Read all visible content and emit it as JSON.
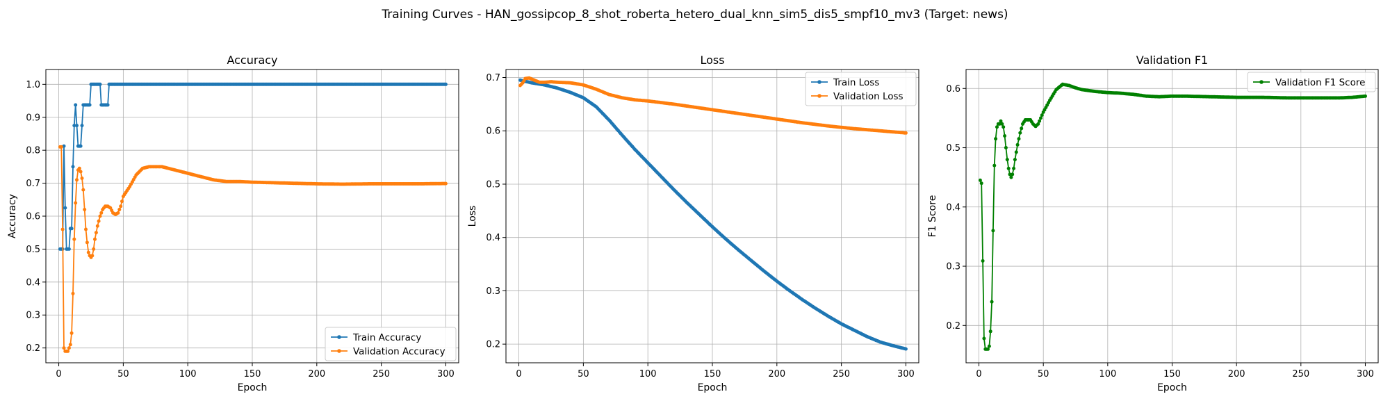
{
  "figure": {
    "title": "Training Curves - HAN_gossipcop_8_shot_roberta_hetero_dual_knn_sim5_dis5_smpf10_mv3 (Target: news)"
  },
  "chart_data": [
    {
      "type": "line",
      "title": "Accuracy",
      "xlabel": "Epoch",
      "ylabel": "Accuracy",
      "xlim": [
        -10,
        310
      ],
      "ylim": [
        0.155,
        1.045
      ],
      "xticks": [
        0,
        50,
        100,
        150,
        200,
        250,
        300
      ],
      "yticks": [
        0.2,
        0.3,
        0.4,
        0.5,
        0.6,
        0.7,
        0.8,
        0.9,
        1.0
      ],
      "ytick_labels": [
        "0.2",
        "0.3",
        "0.4",
        "0.5",
        "0.6",
        "0.7",
        "0.8",
        "0.9",
        "1.0"
      ],
      "grid": true,
      "legend_position": "lower-right",
      "series": [
        {
          "name": "Train Accuracy",
          "color": "#1f77b4",
          "points": [
            [
              1,
              0.5
            ],
            [
              2,
              0.5
            ],
            [
              3,
              0.5
            ],
            [
              4,
              0.8125
            ],
            [
              5,
              0.625
            ],
            [
              6,
              0.5
            ],
            [
              8,
              0.5
            ],
            [
              9,
              0.5625
            ],
            [
              10,
              0.5625
            ],
            [
              11,
              0.75
            ],
            [
              12,
              0.875
            ],
            [
              13,
              0.9375
            ],
            [
              14,
              0.875
            ],
            [
              15,
              0.8125
            ],
            [
              17,
              0.8125
            ],
            [
              18,
              0.875
            ],
            [
              19,
              0.9375
            ],
            [
              24,
              0.9375
            ],
            [
              25,
              1.0
            ],
            [
              32,
              1.0
            ],
            [
              33,
              0.9375
            ],
            [
              38,
              0.9375
            ],
            [
              39,
              1.0
            ],
            [
              300,
              1.0
            ]
          ]
        },
        {
          "name": "Validation Accuracy",
          "color": "#ff7f0e",
          "points": [
            [
              1,
              0.81
            ],
            [
              2,
              0.81
            ],
            [
              3,
              0.56
            ],
            [
              4,
              0.2
            ],
            [
              5,
              0.19
            ],
            [
              7,
              0.19
            ],
            [
              8,
              0.2
            ],
            [
              9,
              0.21
            ],
            [
              10,
              0.245
            ],
            [
              11,
              0.365
            ],
            [
              12,
              0.53
            ],
            [
              13,
              0.64
            ],
            [
              14,
              0.71
            ],
            [
              15,
              0.74
            ],
            [
              16,
              0.745
            ],
            [
              17,
              0.735
            ],
            [
              18,
              0.715
            ],
            [
              19,
              0.68
            ],
            [
              20,
              0.62
            ],
            [
              21,
              0.56
            ],
            [
              22,
              0.52
            ],
            [
              23,
              0.49
            ],
            [
              24,
              0.48
            ],
            [
              25,
              0.475
            ],
            [
              26,
              0.48
            ],
            [
              27,
              0.5
            ],
            [
              28,
              0.53
            ],
            [
              30,
              0.57
            ],
            [
              32,
              0.6
            ],
            [
              34,
              0.62
            ],
            [
              36,
              0.63
            ],
            [
              38,
              0.63
            ],
            [
              40,
              0.625
            ],
            [
              42,
              0.61
            ],
            [
              44,
              0.605
            ],
            [
              46,
              0.61
            ],
            [
              48,
              0.63
            ],
            [
              50,
              0.66
            ],
            [
              55,
              0.69
            ],
            [
              60,
              0.725
            ],
            [
              65,
              0.745
            ],
            [
              70,
              0.75
            ],
            [
              80,
              0.75
            ],
            [
              90,
              0.74
            ],
            [
              100,
              0.73
            ],
            [
              110,
              0.72
            ],
            [
              120,
              0.71
            ],
            [
              130,
              0.705
            ],
            [
              140,
              0.705
            ],
            [
              150,
              0.703
            ],
            [
              160,
              0.702
            ],
            [
              180,
              0.7
            ],
            [
              200,
              0.698
            ],
            [
              220,
              0.697
            ],
            [
              240,
              0.698
            ],
            [
              260,
              0.698
            ],
            [
              280,
              0.698
            ],
            [
              300,
              0.699
            ]
          ]
        }
      ]
    },
    {
      "type": "line",
      "title": "Loss",
      "xlabel": "Epoch",
      "ylabel": "Loss",
      "xlim": [
        -10,
        310
      ],
      "ylim": [
        0.165,
        0.715
      ],
      "xticks": [
        0,
        50,
        100,
        150,
        200,
        250,
        300
      ],
      "yticks": [
        0.2,
        0.3,
        0.4,
        0.5,
        0.6,
        0.7
      ],
      "ytick_labels": [
        "0.2",
        "0.3",
        "0.4",
        "0.5",
        "0.6",
        "0.7"
      ],
      "grid": true,
      "legend_position": "upper-right",
      "series": [
        {
          "name": "Train Loss",
          "color": "#1f77b4",
          "points": [
            [
              1,
              0.695
            ],
            [
              10,
              0.69
            ],
            [
              20,
              0.686
            ],
            [
              30,
              0.68
            ],
            [
              40,
              0.672
            ],
            [
              50,
              0.662
            ],
            [
              60,
              0.645
            ],
            [
              70,
              0.62
            ],
            [
              80,
              0.592
            ],
            [
              90,
              0.565
            ],
            [
              100,
              0.54
            ],
            [
              110,
              0.515
            ],
            [
              120,
              0.49
            ],
            [
              130,
              0.466
            ],
            [
              140,
              0.443
            ],
            [
              150,
              0.42
            ],
            [
              160,
              0.398
            ],
            [
              170,
              0.377
            ],
            [
              180,
              0.357
            ],
            [
              190,
              0.337
            ],
            [
              200,
              0.318
            ],
            [
              210,
              0.3
            ],
            [
              220,
              0.283
            ],
            [
              230,
              0.267
            ],
            [
              240,
              0.252
            ],
            [
              250,
              0.238
            ],
            [
              260,
              0.226
            ],
            [
              270,
              0.214
            ],
            [
              280,
              0.204
            ],
            [
              290,
              0.197
            ],
            [
              300,
              0.191
            ]
          ]
        },
        {
          "name": "Validation Loss",
          "color": "#ff7f0e",
          "points": [
            [
              1,
              0.685
            ],
            [
              3,
              0.69
            ],
            [
              5,
              0.698
            ],
            [
              8,
              0.699
            ],
            [
              12,
              0.695
            ],
            [
              16,
              0.691
            ],
            [
              20,
              0.691
            ],
            [
              25,
              0.692
            ],
            [
              30,
              0.691
            ],
            [
              40,
              0.69
            ],
            [
              50,
              0.686
            ],
            [
              60,
              0.678
            ],
            [
              70,
              0.668
            ],
            [
              80,
              0.662
            ],
            [
              90,
              0.658
            ],
            [
              100,
              0.656
            ],
            [
              120,
              0.65
            ],
            [
              140,
              0.643
            ],
            [
              160,
              0.636
            ],
            [
              180,
              0.629
            ],
            [
              200,
              0.622
            ],
            [
              220,
              0.615
            ],
            [
              240,
              0.609
            ],
            [
              260,
              0.604
            ],
            [
              280,
              0.6
            ],
            [
              300,
              0.596
            ]
          ]
        }
      ]
    },
    {
      "type": "line",
      "title": "Validation F1",
      "xlabel": "Epoch",
      "ylabel": "F1 Score",
      "xlim": [
        -10,
        310
      ],
      "ylim": [
        0.137,
        0.632
      ],
      "xticks": [
        0,
        50,
        100,
        150,
        200,
        250,
        300
      ],
      "yticks": [
        0.2,
        0.3,
        0.4,
        0.5,
        0.6
      ],
      "ytick_labels": [
        "0.2",
        "0.3",
        "0.4",
        "0.5",
        "0.6"
      ],
      "grid": true,
      "legend_position": "upper-right",
      "series": [
        {
          "name": "Validation F1 Score",
          "color": "#008000",
          "points": [
            [
              1,
              0.445
            ],
            [
              2,
              0.44
            ],
            [
              4,
              0.178
            ],
            [
              5,
              0.16
            ],
            [
              7,
              0.16
            ],
            [
              8,
              0.165
            ],
            [
              9,
              0.19
            ],
            [
              10,
              0.24
            ],
            [
              11,
              0.36
            ],
            [
              12,
              0.47
            ],
            [
              13,
              0.515
            ],
            [
              14,
              0.535
            ],
            [
              15,
              0.54
            ],
            [
              16,
              0.54
            ],
            [
              17,
              0.545
            ],
            [
              18,
              0.54
            ],
            [
              19,
              0.535
            ],
            [
              20,
              0.52
            ],
            [
              21,
              0.5
            ],
            [
              22,
              0.48
            ],
            [
              23,
              0.465
            ],
            [
              24,
              0.455
            ],
            [
              25,
              0.45
            ],
            [
              26,
              0.455
            ],
            [
              27,
              0.465
            ],
            [
              28,
              0.48
            ],
            [
              30,
              0.505
            ],
            [
              32,
              0.525
            ],
            [
              34,
              0.54
            ],
            [
              36,
              0.547
            ],
            [
              40,
              0.547
            ],
            [
              42,
              0.54
            ],
            [
              44,
              0.536
            ],
            [
              46,
              0.54
            ],
            [
              48,
              0.55
            ],
            [
              50,
              0.56
            ],
            [
              55,
              0.58
            ],
            [
              60,
              0.598
            ],
            [
              65,
              0.607
            ],
            [
              70,
              0.605
            ],
            [
              75,
              0.601
            ],
            [
              80,
              0.598
            ],
            [
              90,
              0.595
            ],
            [
              100,
              0.593
            ],
            [
              110,
              0.592
            ],
            [
              120,
              0.59
            ],
            [
              130,
              0.587
            ],
            [
              140,
              0.586
            ],
            [
              150,
              0.587
            ],
            [
              160,
              0.587
            ],
            [
              180,
              0.586
            ],
            [
              200,
              0.585
            ],
            [
              220,
              0.585
            ],
            [
              240,
              0.584
            ],
            [
              260,
              0.584
            ],
            [
              280,
              0.584
            ],
            [
              290,
              0.585
            ],
            [
              300,
              0.587
            ]
          ]
        }
      ]
    }
  ]
}
